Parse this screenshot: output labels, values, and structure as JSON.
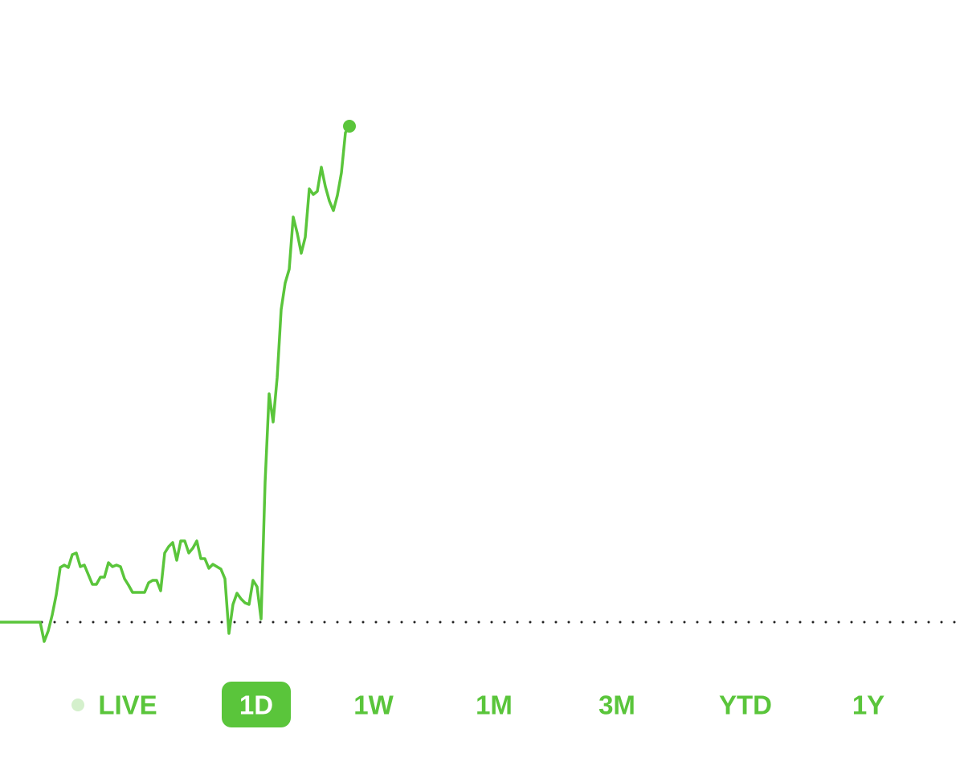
{
  "chart_data": {
    "type": "line",
    "color": "#5ac53b",
    "values": [
      0,
      0,
      0,
      0,
      0,
      0,
      0,
      0,
      0,
      0,
      0,
      -24,
      -11,
      9,
      34,
      68,
      71,
      68,
      84,
      86,
      69,
      71,
      59,
      47,
      47,
      56,
      56,
      74,
      69,
      71,
      69,
      54,
      46,
      37,
      37,
      37,
      37,
      49,
      52,
      52,
      39,
      86,
      94,
      99,
      77,
      101,
      101,
      86,
      92,
      101,
      79,
      79,
      67,
      72,
      69,
      66,
      54,
      -14,
      22,
      36,
      29,
      24,
      22,
      52,
      44,
      4,
      174,
      284,
      249,
      304,
      389,
      422,
      439,
      504,
      484,
      459,
      479,
      539,
      532,
      536,
      566,
      542,
      524,
      512,
      531,
      559,
      609,
      617
    ],
    "xlim": [
      0,
      238
    ],
    "ylim": [
      -40,
      700
    ],
    "baseline": 0
  },
  "range_selector": {
    "labels": [
      "LIVE",
      "1D",
      "1W",
      "1M",
      "3M",
      "YTD",
      "1Y"
    ],
    "selected": 1,
    "live_index": 0
  }
}
